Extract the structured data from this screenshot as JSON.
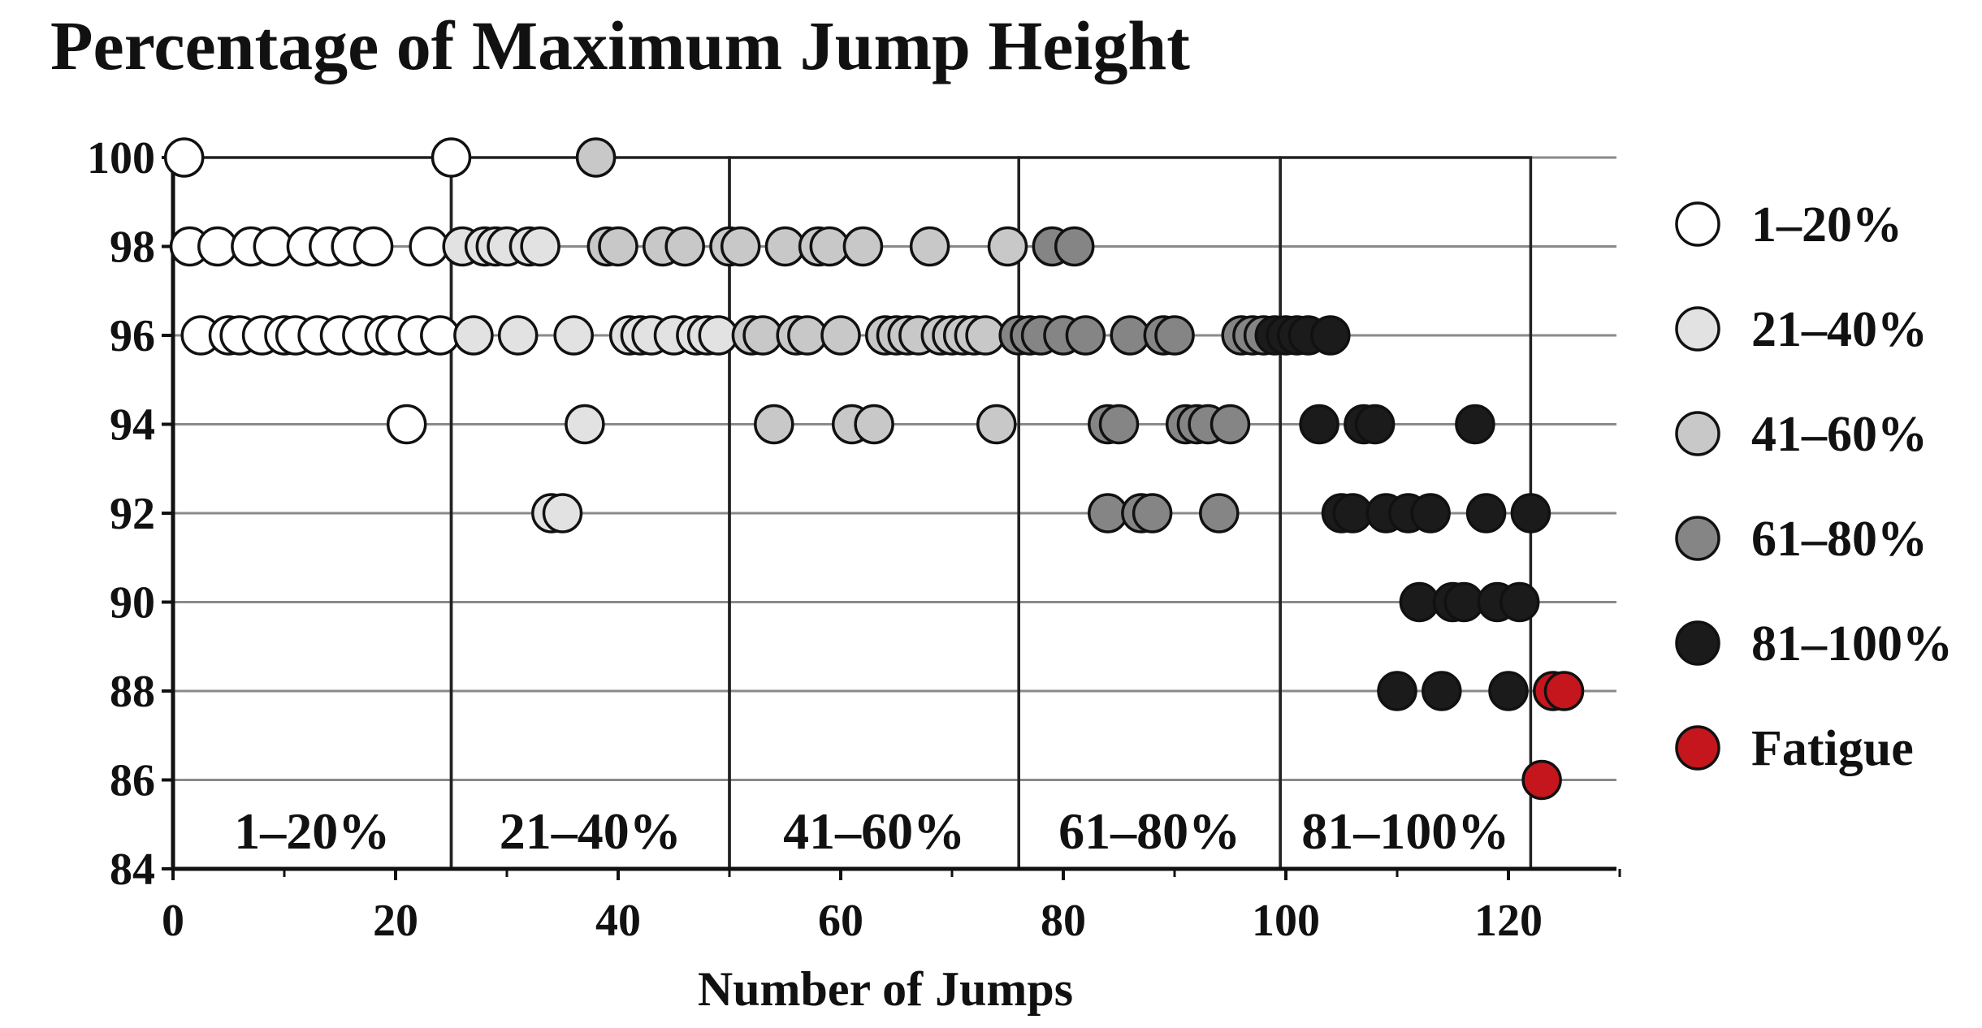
{
  "chart_data": {
    "type": "scatter",
    "title": "Percentage of Maximum Jump Height",
    "xlabel": "Number of Jumps",
    "ylabel": "",
    "xlim": [
      0,
      130
    ],
    "ylim": [
      84,
      100
    ],
    "x_ticks": [
      "0",
      "20",
      "40",
      "60",
      "80",
      "100",
      "120"
    ],
    "x_tick_values": [
      0,
      20,
      40,
      60,
      80,
      100,
      120
    ],
    "y_ticks": [
      "100",
      "98",
      "96",
      "94",
      "92",
      "90",
      "88",
      "86",
      "84"
    ],
    "y_tick_values": [
      100,
      98,
      96,
      94,
      92,
      90,
      88,
      86,
      84
    ],
    "grid": true,
    "legend_position": "right",
    "phase_boundaries": [
      0,
      25,
      50,
      76,
      99.5,
      122
    ],
    "phase_labels": [
      "1–20%",
      "21–40%",
      "41–60%",
      "61–80%",
      "81–100%"
    ],
    "series": [
      {
        "name": "1–20%",
        "color": "#ffffff",
        "points": [
          [
            1,
            100
          ],
          [
            25,
            100
          ],
          [
            1.5,
            98
          ],
          [
            4,
            98
          ],
          [
            7,
            98
          ],
          [
            9,
            98
          ],
          [
            12,
            98
          ],
          [
            14,
            98
          ],
          [
            16,
            98
          ],
          [
            18,
            98
          ],
          [
            23,
            98
          ],
          [
            2.5,
            96
          ],
          [
            5,
            96
          ],
          [
            6,
            96
          ],
          [
            8,
            96
          ],
          [
            10,
            96
          ],
          [
            11,
            96
          ],
          [
            13,
            96
          ],
          [
            15,
            96
          ],
          [
            17,
            96
          ],
          [
            19,
            96
          ],
          [
            20,
            96
          ],
          [
            22,
            96
          ],
          [
            24,
            96
          ],
          [
            21,
            94
          ]
        ]
      },
      {
        "name": "21–40%",
        "color": "#e2e2e2",
        "points": [
          [
            26,
            98
          ],
          [
            28,
            98
          ],
          [
            29,
            98
          ],
          [
            30,
            98
          ],
          [
            32,
            98
          ],
          [
            33,
            98
          ],
          [
            27,
            96
          ],
          [
            31,
            96
          ],
          [
            36,
            96
          ],
          [
            41,
            96
          ],
          [
            42,
            96
          ],
          [
            43,
            96
          ],
          [
            45,
            96
          ],
          [
            47,
            96
          ],
          [
            48,
            96
          ],
          [
            49,
            96
          ],
          [
            37,
            94
          ],
          [
            34,
            92
          ],
          [
            35,
            92
          ]
        ]
      },
      {
        "name": "41–60%",
        "color": "#c8c8c8",
        "points": [
          [
            38,
            100
          ],
          [
            39,
            98
          ],
          [
            40,
            98
          ],
          [
            44,
            98
          ],
          [
            46,
            98
          ],
          [
            50,
            98
          ],
          [
            51,
            98
          ],
          [
            55,
            98
          ],
          [
            58,
            98
          ],
          [
            59,
            98
          ],
          [
            62,
            98
          ],
          [
            68,
            98
          ],
          [
            75,
            98
          ],
          [
            52,
            96
          ],
          [
            53,
            96
          ],
          [
            56,
            96
          ],
          [
            57,
            96
          ],
          [
            60,
            96
          ],
          [
            64,
            96
          ],
          [
            65,
            96
          ],
          [
            66,
            96
          ],
          [
            67,
            96
          ],
          [
            69,
            96
          ],
          [
            70,
            96
          ],
          [
            71,
            96
          ],
          [
            72,
            96
          ],
          [
            73,
            96
          ],
          [
            54,
            94
          ],
          [
            61,
            94
          ],
          [
            63,
            94
          ],
          [
            74,
            94
          ]
        ]
      },
      {
        "name": "61–80%",
        "color": "#858585",
        "points": [
          [
            79,
            98
          ],
          [
            81,
            98
          ],
          [
            76,
            96
          ],
          [
            77,
            96
          ],
          [
            78,
            96
          ],
          [
            80,
            96
          ],
          [
            82,
            96
          ],
          [
            86,
            96
          ],
          [
            89,
            96
          ],
          [
            90,
            96
          ],
          [
            96,
            96
          ],
          [
            97,
            96
          ],
          [
            98,
            96
          ],
          [
            84,
            94
          ],
          [
            85,
            94
          ],
          [
            91,
            94
          ],
          [
            92,
            94
          ],
          [
            93,
            94
          ],
          [
            95,
            94
          ],
          [
            84,
            92
          ],
          [
            87,
            92
          ],
          [
            88,
            92
          ],
          [
            94,
            92
          ]
        ]
      },
      {
        "name": "81–100%",
        "color": "#1b1b1b",
        "points": [
          [
            99,
            96
          ],
          [
            100,
            96
          ],
          [
            101,
            96
          ],
          [
            102,
            96
          ],
          [
            104,
            96
          ],
          [
            103,
            94
          ],
          [
            107,
            94
          ],
          [
            108,
            94
          ],
          [
            117,
            94
          ],
          [
            105,
            92
          ],
          [
            106,
            92
          ],
          [
            109,
            92
          ],
          [
            111,
            92
          ],
          [
            113,
            92
          ],
          [
            118,
            92
          ],
          [
            122,
            92
          ],
          [
            112,
            90
          ],
          [
            115,
            90
          ],
          [
            116,
            90
          ],
          [
            119,
            90
          ],
          [
            121,
            90
          ],
          [
            110,
            88
          ],
          [
            114,
            88
          ],
          [
            120,
            88
          ]
        ]
      },
      {
        "name": "Fatigue",
        "color": "#c4161c",
        "points": [
          [
            124,
            88
          ],
          [
            125,
            88
          ],
          [
            123,
            86
          ]
        ]
      }
    ]
  }
}
